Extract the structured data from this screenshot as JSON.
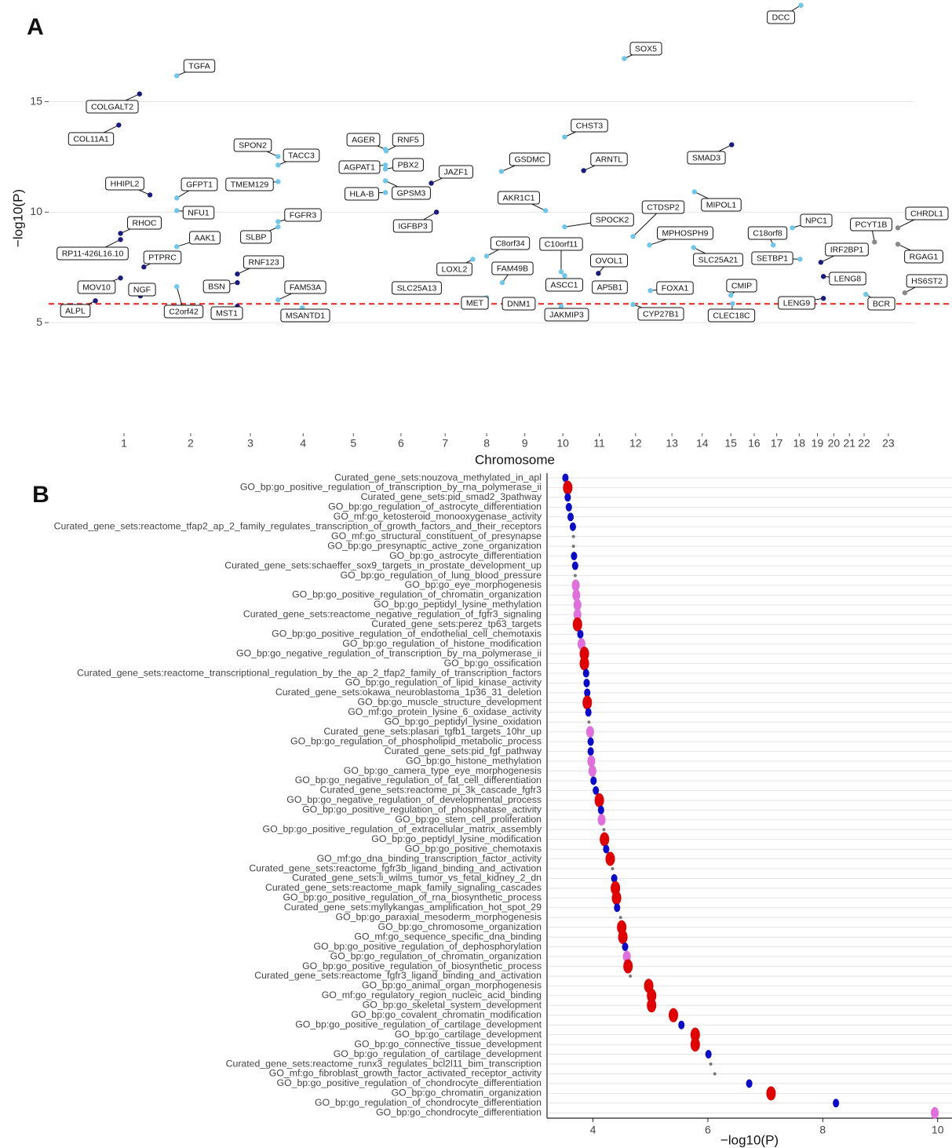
{
  "chart_data": [
    {
      "type": "manhattan",
      "panel": "A",
      "x_label": "Chromosome",
      "y_label": "−log10(P)",
      "xlim": [
        0,
        100
      ],
      "ylim": [
        0,
        19.6
      ],
      "yticks": [
        5,
        10,
        15
      ],
      "grid": true,
      "xticks": [
        {
          "value": 8.7,
          "label": "1"
        },
        {
          "value": 16.4,
          "label": "2"
        },
        {
          "value": 23.3,
          "label": "3"
        },
        {
          "value": 29.4,
          "label": "4"
        },
        {
          "value": 35.2,
          "label": "5"
        },
        {
          "value": 40.7,
          "label": "6"
        },
        {
          "value": 45.8,
          "label": "7"
        },
        {
          "value": 50.6,
          "label": "8"
        },
        {
          "value": 55.0,
          "label": "9"
        },
        {
          "value": 59.4,
          "label": "10"
        },
        {
          "value": 63.6,
          "label": "11"
        },
        {
          "value": 67.8,
          "label": "12"
        },
        {
          "value": 72.0,
          "label": "13"
        },
        {
          "value": 75.5,
          "label": "14"
        },
        {
          "value": 78.8,
          "label": "15"
        },
        {
          "value": 81.5,
          "label": "16"
        },
        {
          "value": 84.1,
          "label": "17"
        },
        {
          "value": 86.7,
          "label": "18"
        },
        {
          "value": 88.8,
          "label": "19"
        },
        {
          "value": 90.7,
          "label": "20"
        },
        {
          "value": 92.5,
          "label": "21"
        },
        {
          "value": 94.2,
          "label": "22"
        },
        {
          "value": 97.0,
          "label": "23"
        }
      ],
      "threshold": 5.85,
      "threshold_color": "#e8211f",
      "labels": [
        "DCC",
        "SOX5",
        "TGFA",
        "COLGALT2",
        "COL11A1",
        "CHST3",
        "SMAD3",
        "SPON2",
        "TACC3",
        "AGER",
        "RNF5",
        "PBX2",
        "AGPAT1",
        "GSDMC",
        "ARNTL",
        "JAZF1",
        "HHIPL2",
        "GFPT1",
        "TMEM129",
        "GPSM3",
        "HLA-B",
        "AKR1C1",
        "MIPOL1",
        "CTDSP2",
        "NFU1",
        "FGFR3",
        "IGFBP3",
        "SPOCK2",
        "RHOC",
        "CHRDL1",
        "PCYT1B",
        "NPC1",
        "C18orf8",
        "SLBP",
        "AAK1",
        "MPHOSPH9",
        "RP11-426L16.10",
        "IRF2BP1",
        "RGAG1",
        "PTPRC",
        "SETBP1",
        "C8orf34",
        "C10orf11",
        "SLC25A21",
        "OVOL1",
        "RNF123",
        "LOXL2",
        "FAM49B",
        "LENG8",
        "HS6ST2",
        "MOV10",
        "NGF",
        "BSN",
        "FAM53A",
        "SLC25A13",
        "ASCC1",
        "CMIP",
        "AP5B1",
        "FOXA1",
        "C2orf42",
        "MET",
        "LENG9",
        "BCR",
        "DNM1",
        "ALPL",
        "MST1",
        "MSANTD1",
        "JAKMIP3",
        "CYP27B1",
        "CLEC18C"
      ],
      "x": [
        86.9,
        66.5,
        14.8,
        10.5,
        8.1,
        59.6,
        78.9,
        26.5,
        26.5,
        38.9,
        39.0,
        38.9,
        38.9,
        52.3,
        61.8,
        44.2,
        11.7,
        14.8,
        26.5,
        38.9,
        38.9,
        57.4,
        74.6,
        67.5,
        14.8,
        26.5,
        44.8,
        59.6,
        8.3,
        98.1,
        95.4,
        85.9,
        83.7,
        26.5,
        14.8,
        69.4,
        8.3,
        89.2,
        98.1,
        11.0,
        86.8,
        50.6,
        59.2,
        74.5,
        63.5,
        21.8,
        49.0,
        52.4,
        89.5,
        98.9,
        8.3,
        10.6,
        21.8,
        26.5,
        44.9,
        59.6,
        78.8,
        63.5,
        69.5,
        14.8,
        50.6,
        89.5,
        94.4,
        55.0,
        5.4,
        21.8,
        29.3,
        59.2,
        67.5,
        79.0
      ],
      "y": [
        19.36,
        16.95,
        16.17,
        15.35,
        13.94,
        13.4,
        13.05,
        12.52,
        12.13,
        12.84,
        12.77,
        11.95,
        12.13,
        11.84,
        11.88,
        11.31,
        10.78,
        10.64,
        11.38,
        11.42,
        10.89,
        10.07,
        10.92,
        8.9,
        10.07,
        9.57,
        10.0,
        9.33,
        9.04,
        9.29,
        8.65,
        9.29,
        8.51,
        9.33,
        8.44,
        8.51,
        8.76,
        7.73,
        8.55,
        7.52,
        7.87,
        8.01,
        7.3,
        8.4,
        7.23,
        7.2,
        7.87,
        6.81,
        7.09,
        6.35,
        7.02,
        6.21,
        6.81,
        6.03,
        6.56,
        7.13,
        6.24,
        6.52,
        6.45,
        6.63,
        6.13,
        6.1,
        6.28,
        5.89,
        5.99,
        5.74,
        5.67,
        5.74,
        5.82,
        5.86
      ],
      "colors": [
        "#6ec6ea",
        "#6ec6ea",
        "#6ec6ea",
        "#1b1b7e",
        "#1b1b7e",
        "#6ec6ea",
        "#1b1b7e",
        "#6ec6ea",
        "#6ec6ea",
        "#6ec6ea",
        "#6ec6ea",
        "#6ec6ea",
        "#6ec6ea",
        "#6ec6ea",
        "#1b1b7e",
        "#1b1b7e",
        "#1b1b7e",
        "#6ec6ea",
        "#6ec6ea",
        "#6ec6ea",
        "#6ec6ea",
        "#6ec6ea",
        "#6ec6ea",
        "#6ec6ea",
        "#6ec6ea",
        "#6ec6ea",
        "#1b1b7e",
        "#6ec6ea",
        "#1b1b7e",
        "#8a8a8a",
        "#8a8a8a",
        "#6ec6ea",
        "#6ec6ea",
        "#6ec6ea",
        "#6ec6ea",
        "#6ec6ea",
        "#1b1b7e",
        "#1b1b7e",
        "#8a8a8a",
        "#1b1b7e",
        "#6ec6ea",
        "#6ec6ea",
        "#6ec6ea",
        "#6ec6ea",
        "#1b1b7e",
        "#1b1b7e",
        "#6ec6ea",
        "#6ec6ea",
        "#1b1b7e",
        "#8a8a8a",
        "#1b1b7e",
        "#1b1b7e",
        "#1b1b7e",
        "#6ec6ea",
        "#1b1b7e",
        "#6ec6ea",
        "#6ec6ea",
        "#1b1b7e",
        "#6ec6ea",
        "#6ec6ea",
        "#6ec6ea",
        "#1b1b7e",
        "#6ec6ea",
        "#1b1b7e",
        "#1b1b7e",
        "#1b1b7e",
        "#6ec6ea",
        "#6ec6ea",
        "#6ec6ea",
        "#6ec6ea"
      ]
    },
    {
      "type": "dot",
      "panel": "B",
      "x_label": "−log10(P)",
      "xlim": [
        3.2,
        10.25
      ],
      "xticks": [
        4,
        6,
        8,
        10
      ],
      "grid": true,
      "categories": [
        "Curated_gene_sets:nouzova_methylated_in_apl",
        "GO_bp:go_positive_regulation_of_transcription_by_rna_polymerase_ii",
        "Curated_gene_sets:pid_smad2_3pathway",
        "GO_bp:go_regulation_of_astrocyte_differentiation",
        "GO_mf:go_ketosteroid_monooxygenase_activity",
        "Curated_gene_sets:reactome_tfap2_ap_2_family_regulates_transcription_of_growth_factors_and_their_receptors",
        "GO_mf:go_structural_constituent_of_presynapse",
        "GO_bp:go_presynaptic_active_zone_organization",
        "GO_bp:go_astrocyte_differentiation",
        "Curated_gene_sets:schaeffer_sox9_targets_in_prostate_development_up",
        "GO_bp:go_regulation_of_lung_blood_pressure",
        "GO_bp:go_eye_morphogenesis",
        "GO_bp:go_positive_regulation_of_chromatin_organization",
        "GO_bp:go_peptidyl_lysine_methylation",
        "Curated_gene_sets:reactome_negative_regulation_of_fgfr3_signaling",
        "Curated_gene_sets:perez_tp63_targets",
        "GO_bp:go_positive_regulation_of_endothelial_cell_chemotaxis",
        "GO_bp:go_regulation_of_histone_modification",
        "GO_bp:go_negative_regulation_of_transcription_by_rna_polymerase_ii",
        "GO_bp:go_ossification",
        "Curated_gene_sets:reactome_transcriptional_regulation_by_the_ap_2_tfap2_family_of_transcription_factors",
        "GO_bp:go_regulation_of_lipid_kinase_activity",
        "Curated_gene_sets:okawa_neuroblastoma_1p36_31_deletion",
        "GO_bp:go_muscle_structure_development",
        "GO_mf:go_protein_lysine_6_oxidase_activity",
        "GO_bp:go_peptidyl_lysine_oxidation",
        "Curated_gene_sets:plasari_tgfb1_targets_10hr_up",
        "GO_bp:go_regulation_of_phospholipid_metabolic_process",
        "Curated_gene_sets:pid_fgf_pathway",
        "GO_bp:go_histone_methylation",
        "GO_bp:go_camera_type_eye_morphogenesis",
        "GO_bp:go_negative_regulation_of_fat_cell_differentiation",
        "Curated_gene_sets:reactome_pi_3k_cascade_fgfr3",
        "GO_bp:go_negative_regulation_of_developmental_process",
        "GO_bp:go_positive_regulation_of_phosphatase_activity",
        "GO_bp:go_stem_cell_proliferation",
        "GO_bp:go_positive_regulation_of_extracellular_matrix_assembly",
        "GO_bp:go_peptidyl_lysine_modification",
        "GO_bp:go_positive_chemotaxis",
        "GO_mf:go_dna_binding_transcription_factor_activity",
        "Curated_gene_sets:reactome_fgfr3b_ligand_binding_and_activation",
        "Curated_gene_sets:li_wilms_tumor_vs_fetal_kidney_2_dn",
        "Curated_gene_sets:reactome_mapk_family_signaling_cascades",
        "GO_bp:go_positive_regulation_of_rna_biosynthetic_process",
        "Curated_gene_sets:myllykangas_amplification_hot_spot_29",
        "GO_bp:go_paraxial_mesoderm_morphogenesis",
        "GO_bp:go_chromosome_organization",
        "GO_mf:go_sequence_specific_dna_binding",
        "GO_bp:go_positive_regulation_of_dephosphorylation",
        "GO_bp:go_regulation_of_chromatin_organization",
        "GO_bp:go_positive_regulation_of_biosynthetic_process",
        "Curated_gene_sets:reactome_fgfr3_ligand_binding_and_activation",
        "GO_bp:go_animal_organ_morphogenesis",
        "GO_mf:go_regulatory_region_nucleic_acid_binding",
        "GO_bp:go_skeletal_system_development",
        "GO_bp:go_covalent_chromatin_modification",
        "GO_bp:go_positive_regulation_of_cartilage_development",
        "GO_bp:go_cartilage_development",
        "GO_bp:go_connective_tissue_development",
        "GO_bp:go_regulation_of_cartilage_development",
        "Curated_gene_sets:reactome_runx3_regulates_bcl2l11_bim_transcription",
        "GO_mf:go_fibroblast_growth_factor_activated_receptor_activity",
        "GO_bp:go_positive_regulation_of_chondrocyte_differentiation",
        "GO_bp:go_chromatin_organization",
        "GO_bp:go_regulation_of_chondrocyte_differentiation",
        "GO_bp:go_chondrocyte_differentiation"
      ],
      "values": [
        3.52,
        3.56,
        3.56,
        3.58,
        3.61,
        3.65,
        3.66,
        3.66,
        3.67,
        3.69,
        3.69,
        3.7,
        3.71,
        3.73,
        3.73,
        3.73,
        3.78,
        3.8,
        3.85,
        3.85,
        3.88,
        3.89,
        3.9,
        3.9,
        3.92,
        3.93,
        3.95,
        3.96,
        3.96,
        3.97,
        3.99,
        4.01,
        4.05,
        4.11,
        4.14,
        4.15,
        4.19,
        4.2,
        4.23,
        4.3,
        4.34,
        4.37,
        4.39,
        4.41,
        4.42,
        4.48,
        4.5,
        4.52,
        4.56,
        4.59,
        4.61,
        4.65,
        4.97,
        5.02,
        5.02,
        5.4,
        5.54,
        5.78,
        5.78,
        6.01,
        6.05,
        6.12,
        6.72,
        7.1,
        8.23,
        9.95
      ],
      "colors": [
        "#0a0acc",
        "#e00000",
        "#0a0acc",
        "#0a0acc",
        "#0a0acc",
        "#0a0acc",
        "#777777",
        "#777777",
        "#0a0acc",
        "#0a0acc",
        "#777777",
        "#e070dc",
        "#e070dc",
        "#e070dc",
        "#e070dc",
        "#e00000",
        "#0a0acc",
        "#e070dc",
        "#e00000",
        "#e00000",
        "#0a0acc",
        "#0a0acc",
        "#0a0acc",
        "#e00000",
        "#0a0acc",
        "#777777",
        "#e070dc",
        "#0a0acc",
        "#0a0acc",
        "#e070dc",
        "#e070dc",
        "#0a0acc",
        "#0a0acc",
        "#e00000",
        "#0a0acc",
        "#e070dc",
        "#777777",
        "#e00000",
        "#0a0acc",
        "#e00000",
        "#777777",
        "#0a0acc",
        "#e00000",
        "#e00000",
        "#0a0acc",
        "#777777",
        "#e00000",
        "#e00000",
        "#0a0acc",
        "#e070dc",
        "#e00000",
        "#777777",
        "#e00000",
        "#e00000",
        "#e00000",
        "#e00000",
        "#0a0acc",
        "#e00000",
        "#e00000",
        "#0a0acc",
        "#777777",
        "#777777",
        "#0a0acc",
        "#e00000",
        "#0a0acc",
        "#e070dc"
      ]
    }
  ]
}
